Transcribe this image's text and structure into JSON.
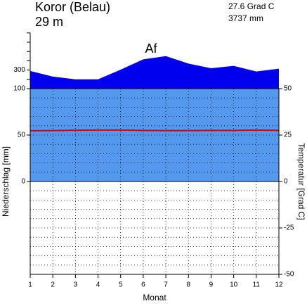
{
  "station": "Koror (Belau)",
  "elevation": "29 m",
  "mean_temperature": "27.6 Grad C",
  "annual_precipitation": "3737 mm",
  "climate_class": "Af",
  "chart_data": {
    "type": "climate",
    "xlabel": "Monat",
    "ylabel": "Niederschlag [mm]",
    "y2label": "Temperatur [Grad C]",
    "categories": [
      1,
      2,
      3,
      4,
      5,
      6,
      7,
      8,
      9,
      10,
      11,
      12
    ],
    "precipitation": {
      "color": "#0000ee",
      "values": [
        290,
        230,
        200,
        200,
        305,
        415,
        450,
        370,
        320,
        345,
        285,
        315
      ]
    },
    "temperature": {
      "color": "#dd0000",
      "axis": "y2",
      "values": [
        27.3,
        27.4,
        27.6,
        27.7,
        27.7,
        27.5,
        27.4,
        27.4,
        27.5,
        27.5,
        27.7,
        27.5
      ]
    },
    "humid_color": "#5599ee",
    "ylim": [
      0,
      700
    ],
    "yticks": [
      0,
      50,
      100,
      300
    ],
    "yticks_minor": [
      200,
      400,
      500,
      600,
      700
    ],
    "y2lim": [
      -50,
      50
    ],
    "y2ticks": [
      -50,
      -25,
      0,
      25,
      50
    ]
  }
}
